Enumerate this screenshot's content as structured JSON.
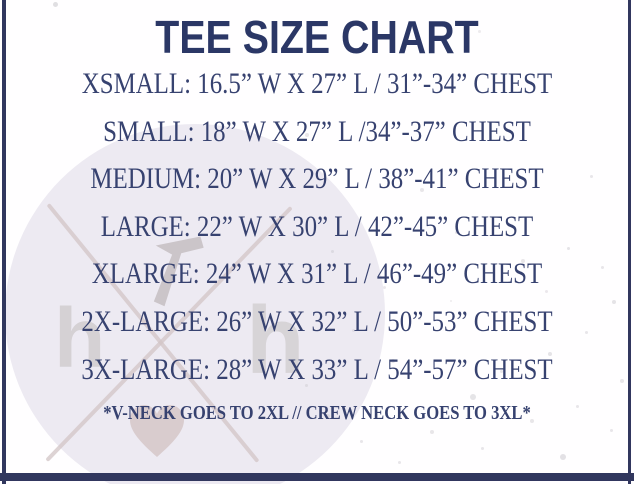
{
  "title": "TEE SIZE CHART",
  "sizes": [
    {
      "name": "XSMALL",
      "width_in": "16.5",
      "length_in": "27",
      "chest_in": "31-34",
      "text": "XSMALL: 16.5” W X 27” L / 31”-34” CHEST"
    },
    {
      "name": "SMALL",
      "width_in": "18",
      "length_in": "27",
      "chest_in": "34-37",
      "text": "SMALL: 18” W X 27” L /34”-37” CHEST"
    },
    {
      "name": "MEDIUM",
      "width_in": "20",
      "length_in": "29",
      "chest_in": "38-41",
      "text": "MEDIUM: 20” W X 29” L / 38”-41” CHEST"
    },
    {
      "name": "LARGE",
      "width_in": "22",
      "length_in": "30",
      "chest_in": "42-45",
      "text": "LARGE: 22” W X 30” L / 42”-45” CHEST"
    },
    {
      "name": "XLARGE",
      "width_in": "24",
      "length_in": "31",
      "chest_in": "46-49",
      "text": "XLARGE: 24” W X 31” L / 46”-49” CHEST"
    },
    {
      "name": "2X-LARGE",
      "width_in": "26",
      "length_in": "32",
      "chest_in": "50-53",
      "text": "2X-LARGE: 26” W X 32” L / 50”-53” CHEST"
    },
    {
      "name": "3X-LARGE",
      "width_in": "28",
      "length_in": "33",
      "chest_in": "54-57",
      "text": "3X-LARGE: 28” W X 33” L / 54”-57” CHEST"
    }
  ],
  "footnote": "*V-NECK GOES TO 2XL // CREW NECK GOES TO 3XL*",
  "watermark": {
    "monogram_letter": "h",
    "icons": [
      "circle",
      "cross-lines",
      "lightning-bolt-icon",
      "heart-icon",
      "h-monogram-icon"
    ]
  },
  "colors": {
    "title-navy": "#2b3766",
    "text-navy": "#374270",
    "border-navy": "#31375e",
    "watermark-lavender": "#edeaf2",
    "watermark-grey": "#d3cfd2",
    "watermark-pink": "#d2c4c6"
  }
}
